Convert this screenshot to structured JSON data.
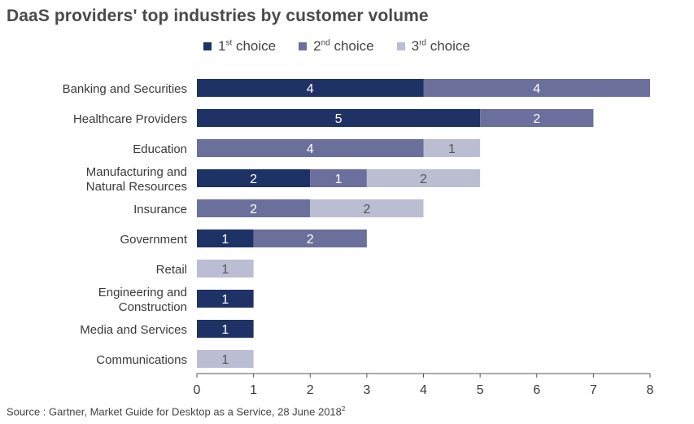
{
  "title": "DaaS providers' top industries by customer volume",
  "legend": [
    {
      "num": "1",
      "sup": "st",
      "text": " choice",
      "color": "#1f3265"
    },
    {
      "num": "2",
      "sup": "nd",
      "text": " choice",
      "color": "#6b6f9b"
    },
    {
      "num": "3",
      "sup": "rd",
      "text": " choice",
      "color": "#bbbdd3"
    }
  ],
  "source": {
    "text": "Source : Gartner, Market Guide for Desktop as a Service, 28 June 2018",
    "sup": "2"
  },
  "chart_data": {
    "type": "bar",
    "orientation": "horizontal",
    "stacked": true,
    "title": "DaaS providers' top industries by customer volume",
    "categories": [
      [
        "Banking and Securities"
      ],
      [
        "Healthcare Providers"
      ],
      [
        "Education"
      ],
      [
        "Manufacturing and",
        "Natural Resources"
      ],
      [
        "Insurance"
      ],
      [
        "Government"
      ],
      [
        "Retail"
      ],
      [
        "Engineering and",
        "Construction"
      ],
      [
        "Media and Services"
      ],
      [
        "Communications"
      ]
    ],
    "series": [
      {
        "name": "1st choice",
        "color": "#1f3265",
        "label_color": "#ffffff",
        "values": [
          4,
          5,
          0,
          2,
          0,
          1,
          0,
          1,
          1,
          0
        ]
      },
      {
        "name": "2nd choice",
        "color": "#6b6f9b",
        "label_color": "#ffffff",
        "values": [
          4,
          2,
          4,
          1,
          2,
          2,
          0,
          0,
          0,
          0
        ]
      },
      {
        "name": "3rd choice",
        "color": "#bbbdd3",
        "label_color": "#555555",
        "values": [
          0,
          0,
          1,
          2,
          2,
          0,
          1,
          0,
          0,
          1
        ]
      }
    ],
    "xlim": [
      0,
      8
    ],
    "xticks": [
      0,
      1,
      2,
      3,
      4,
      5,
      6,
      7,
      8
    ],
    "grid": false,
    "legend_position": "top"
  }
}
